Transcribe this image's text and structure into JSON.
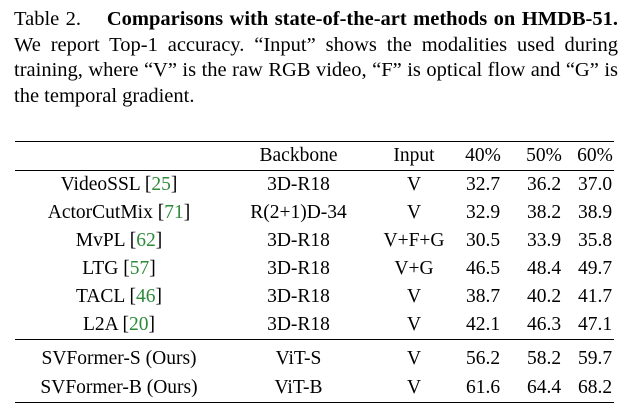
{
  "caption": {
    "label": "Table 2.",
    "title": "Comparisons with state-of-the-art methods on HMDB-51.",
    "body": "We report Top-1 accuracy. “Input” shows the modalities used during training, where “V” is the raw RGB video, “F” is optical flow and “G” is the temporal gradient."
  },
  "table": {
    "headers": [
      "",
      "Backbone",
      "Input",
      "40%",
      "50%",
      "60%"
    ],
    "rows": [
      {
        "method": "VideoSSL",
        "cite": "25",
        "backbone": "3D-R18",
        "input": "V",
        "v40": "32.7",
        "v50": "36.2",
        "v60": "37.0"
      },
      {
        "method": "ActorCutMix",
        "cite": "71",
        "backbone": "R(2+1)D-34",
        "input": "V",
        "v40": "32.9",
        "v50": "38.2",
        "v60": "38.9"
      },
      {
        "method": "MvPL",
        "cite": "62",
        "backbone": "3D-R18",
        "input": "V+F+G",
        "v40": "30.5",
        "v50": "33.9",
        "v60": "35.8"
      },
      {
        "method": "LTG",
        "cite": "57",
        "backbone": "3D-R18",
        "input": "V+G",
        "v40": "46.5",
        "v50": "48.4",
        "v60": "49.7"
      },
      {
        "method": "TACL",
        "cite": "46",
        "backbone": "3D-R18",
        "input": "V",
        "v40": "38.7",
        "v50": "40.2",
        "v60": "41.7"
      },
      {
        "method": "L2A",
        "cite": "20",
        "backbone": "3D-R18",
        "input": "V",
        "v40": "42.1",
        "v50": "46.3",
        "v60": "47.1"
      }
    ],
    "ours": [
      {
        "method": "SVFormer-S (Ours)",
        "backbone": "ViT-S",
        "input": "V",
        "v40": "56.2",
        "v50": "58.2",
        "v60": "59.7"
      },
      {
        "method": "SVFormer-B (Ours)",
        "backbone": "ViT-B",
        "input": "V",
        "v40": "61.6",
        "v50": "64.4",
        "v60": "68.2"
      }
    ]
  },
  "colors": {
    "citation": "#2e8b3a",
    "text": "#000000"
  }
}
